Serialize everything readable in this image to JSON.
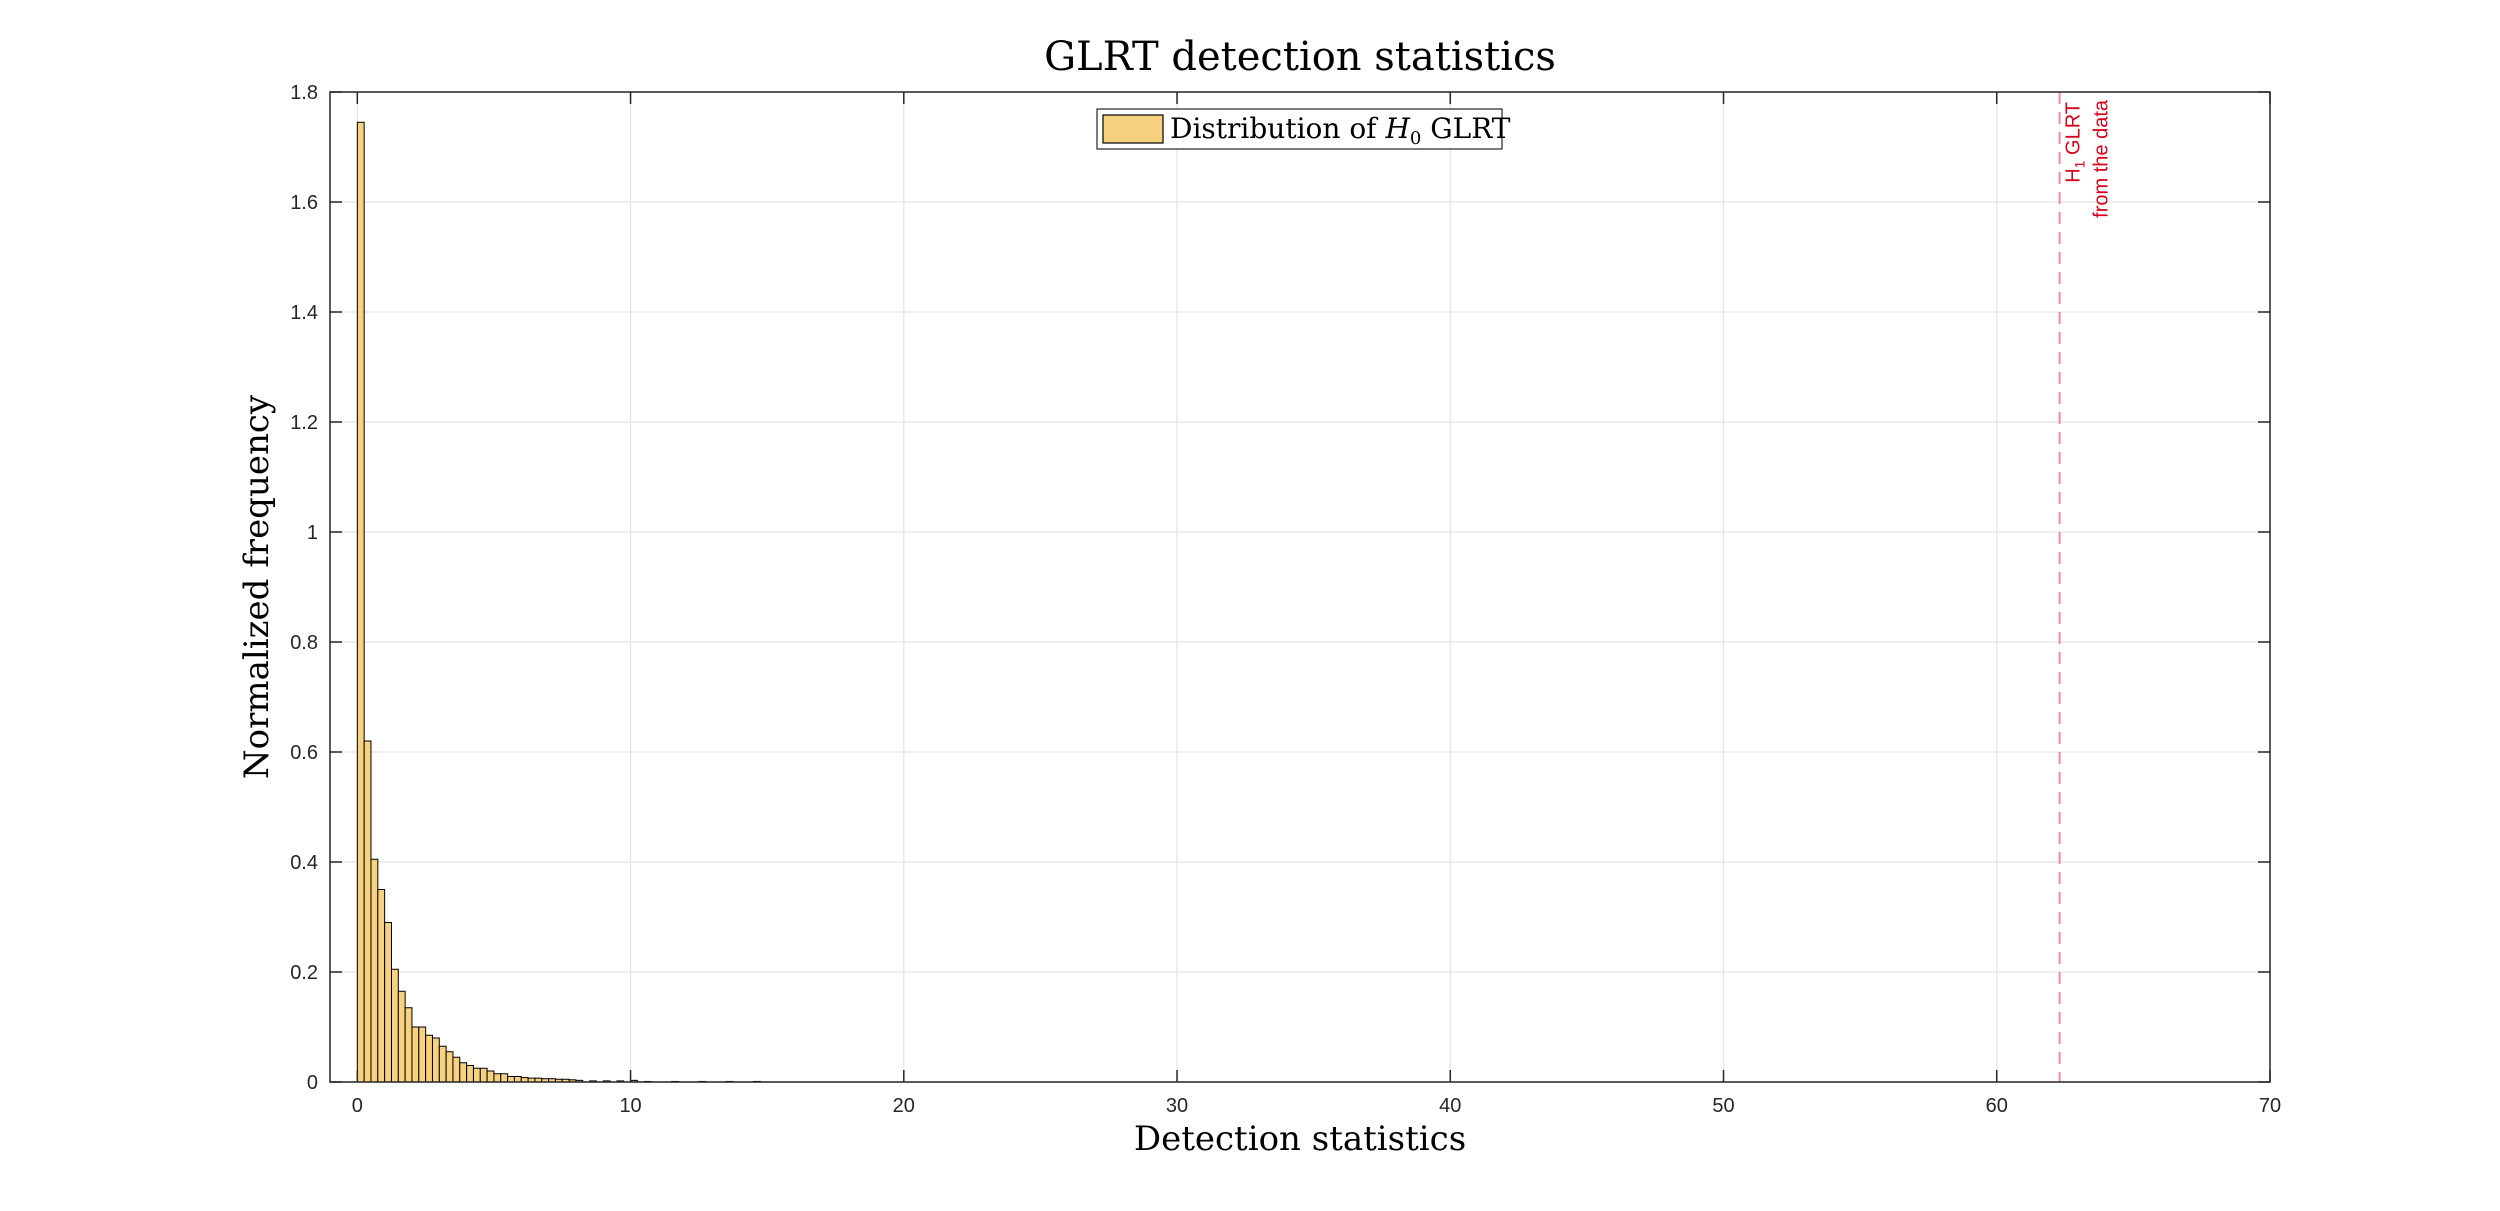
{
  "chart_data": {
    "type": "bar",
    "title": "GLRT detection statistics",
    "xlabel": "Detection statistics",
    "ylabel": "Normalized frequency",
    "xlim": [
      -1,
      70
    ],
    "ylim": [
      0,
      1.8
    ],
    "xticks": [
      0,
      10,
      20,
      30,
      40,
      50,
      60,
      70
    ],
    "yticks": [
      0,
      0.2,
      0.4,
      0.6,
      0.8,
      1,
      1.2,
      1.4,
      1.6,
      1.8
    ],
    "grid": true,
    "legend": {
      "location": "top-center",
      "entries": [
        {
          "label_prefix": "Distribution of ",
          "symbol": "H",
          "subscript": "0",
          "label_suffix": " GLRT"
        }
      ]
    },
    "bar_color": "#F7D27E",
    "bar_edge_color": "#000000",
    "bin_width": 0.25,
    "bins_start": [
      0,
      0.25,
      0.5,
      0.75,
      1.0,
      1.25,
      1.5,
      1.75,
      2.0,
      2.25,
      2.5,
      2.75,
      3.0,
      3.25,
      3.5,
      3.75,
      4.0,
      4.25,
      4.5,
      4.75,
      5.0,
      5.25,
      5.5,
      5.75,
      6.0,
      6.25,
      6.5,
      6.75,
      7.0,
      7.25,
      7.5,
      7.75,
      8.0,
      8.5,
      9.0,
      9.5,
      10.0,
      10.5,
      11.5,
      12.5,
      13.5,
      14.5
    ],
    "values": [
      1.745,
      0.62,
      0.405,
      0.35,
      0.29,
      0.205,
      0.165,
      0.135,
      0.1,
      0.1,
      0.085,
      0.08,
      0.065,
      0.055,
      0.045,
      0.035,
      0.03,
      0.025,
      0.025,
      0.02,
      0.015,
      0.015,
      0.01,
      0.01,
      0.008,
      0.007,
      0.007,
      0.006,
      0.006,
      0.005,
      0.005,
      0.004,
      0.003,
      0.002,
      0.002,
      0.002,
      0.003,
      0.001,
      0.001,
      0.001,
      0.001,
      0.001
    ],
    "annotation": {
      "x": 62.3,
      "line_style": "dashed",
      "color": "#D9001B",
      "line_color": "#F08A9A",
      "symbol": "H",
      "subscript": "1",
      "line1_suffix": " GLRT",
      "line2": "from the data"
    }
  }
}
